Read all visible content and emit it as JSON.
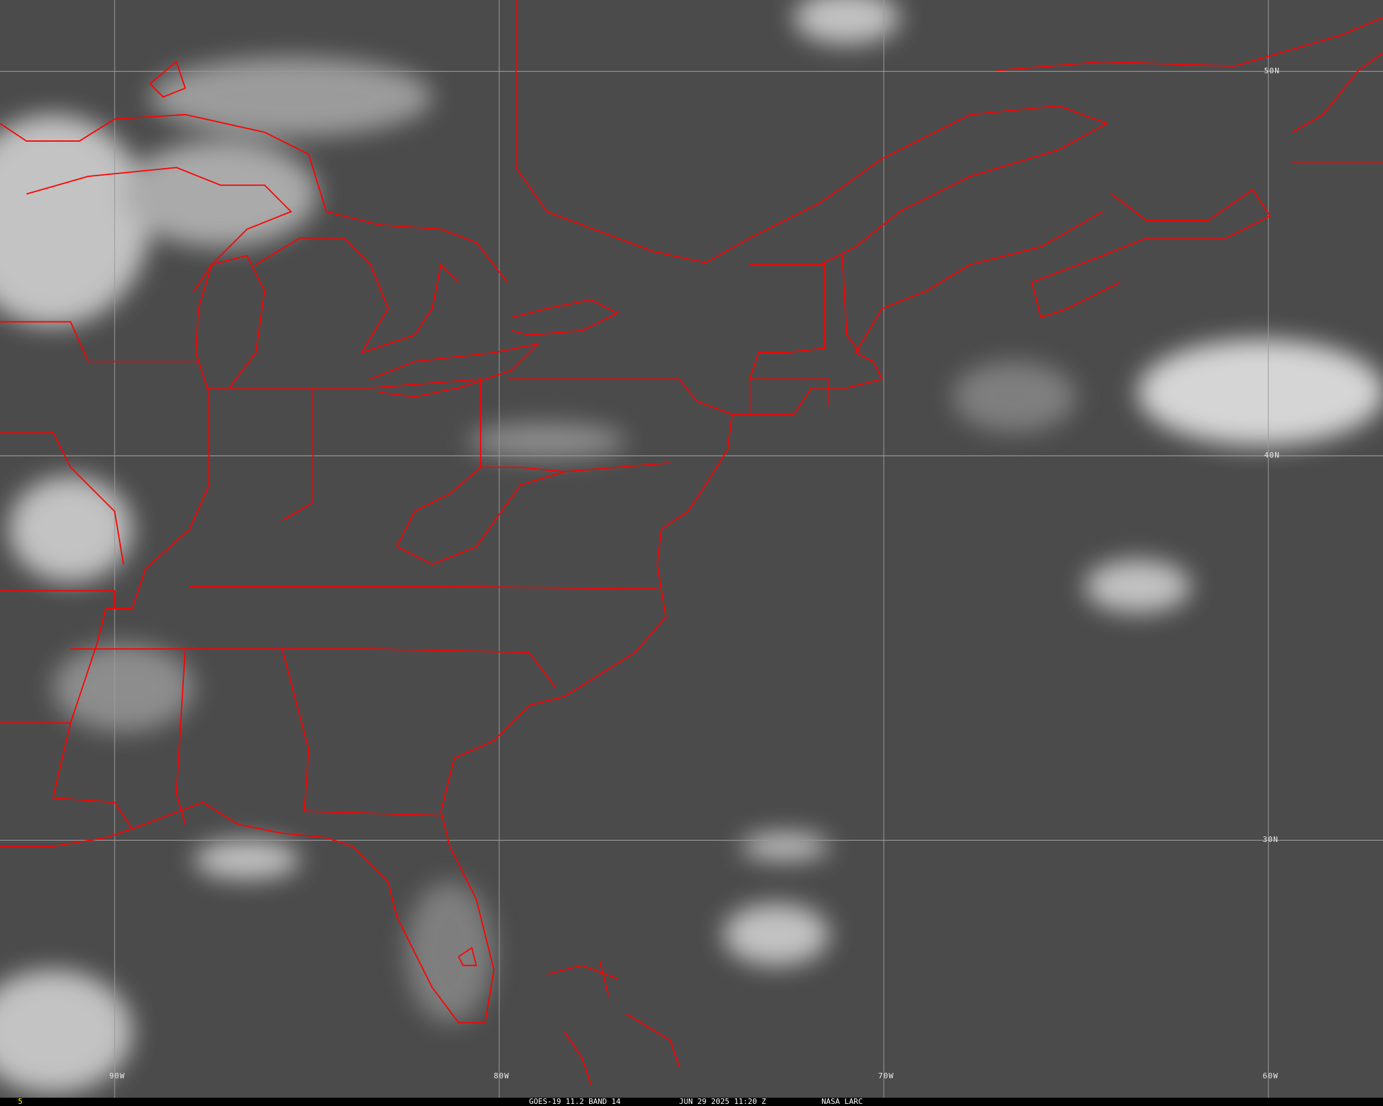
{
  "satellite": {
    "footer": {
      "frame_number": "5",
      "product": "GOES-19 11.2 BAND 14",
      "datetime": "JUN 29 2025 11:20 Z",
      "source": "NASA LARC"
    },
    "grid": {
      "latitude_labels": [
        "50N",
        "40N",
        "30N"
      ],
      "longitude_labels": [
        "90W",
        "80W",
        "70W",
        "60W"
      ]
    },
    "colors": {
      "boundaries": "#ff0000",
      "grid": "#9a9a9a",
      "frame_number": "#ffff00"
    }
  }
}
